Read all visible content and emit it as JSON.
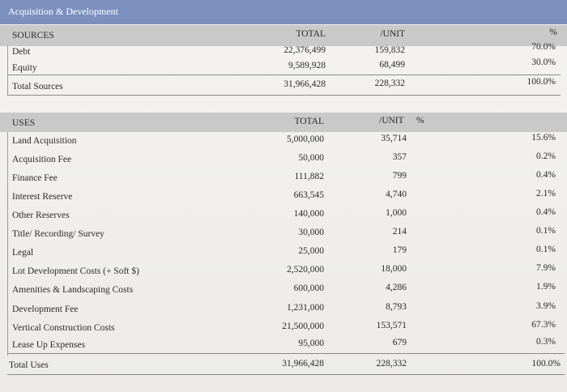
{
  "title": "Acquisition & Development",
  "sources": {
    "header": {
      "label": "SOURCES",
      "total": "TOTAL",
      "unit": "/UNIT",
      "pct": "%"
    },
    "rows": [
      {
        "label": "Debt",
        "total": "22,376,499",
        "unit": "159,832",
        "pct": "70.0%"
      },
      {
        "label": "Equity",
        "total": "9,589,928",
        "unit": "68,499",
        "pct": "30.0%"
      }
    ],
    "total": {
      "label": "Total Sources",
      "total": "31,966,428",
      "unit": "228,332",
      "pct": "100.0%"
    }
  },
  "uses": {
    "header": {
      "label": "USES",
      "total": "TOTAL",
      "unit": "/UNIT",
      "pct": "%"
    },
    "rows": [
      {
        "label": "Land Acquisition",
        "total": "5,000,000",
        "unit": "35,714",
        "pct": "15.6%"
      },
      {
        "label": "Acquisition Fee",
        "total": "50,000",
        "unit": "357",
        "pct": "0.2%"
      },
      {
        "label": "Finance Fee",
        "total": "111,882",
        "unit": "799",
        "pct": "0.4%"
      },
      {
        "label": "Interest Reserve",
        "total": "663,545",
        "unit": "4,740",
        "pct": "2.1%"
      },
      {
        "label": "Other Reserves",
        "total": "140,000",
        "unit": "1,000",
        "pct": "0.4%"
      },
      {
        "label": "Title/ Recording/ Survey",
        "total": "30,000",
        "unit": "214",
        "pct": "0.1%"
      },
      {
        "label": "Legal",
        "total": "25,000",
        "unit": "179",
        "pct": "0.1%"
      },
      {
        "label": "Lot Development Costs (+ Soft $)",
        "total": "2,520,000",
        "unit": "18,000",
        "pct": "7.9%"
      },
      {
        "label": "Amenities & Landscaping Costs",
        "total": "600,000",
        "unit": "4,286",
        "pct": "1.9%"
      },
      {
        "label": "Development Fee",
        "total": "1,231,000",
        "unit": "8,793",
        "pct": "3.9%"
      },
      {
        "label": "Vertical Construction Costs",
        "total": "21,500,000",
        "unit": "153,571",
        "pct": "67.3%"
      },
      {
        "label": "Lease Up Expenses",
        "total": "95,000",
        "unit": "679",
        "pct": "0.3%"
      }
    ],
    "total": {
      "label": "Total Uses",
      "total": "31,966,428",
      "unit": "228,332",
      "pct": "100.0%"
    }
  }
}
